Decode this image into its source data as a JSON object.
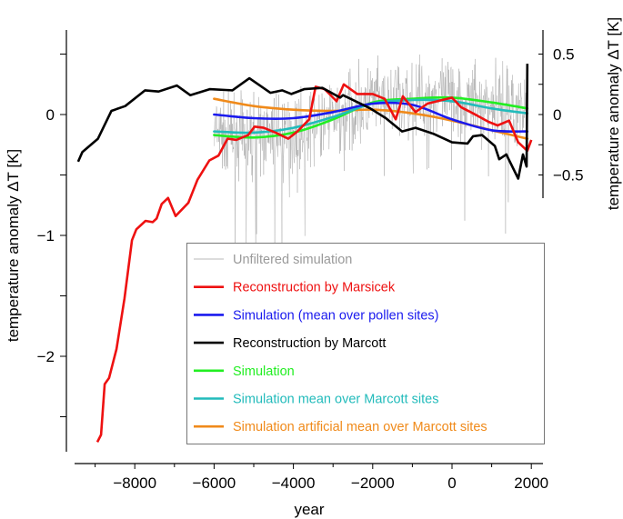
{
  "chart_data": {
    "type": "line",
    "title": "",
    "xlabel": "year",
    "ylabel_left": "temperature anomaly ΔT [K]",
    "ylabel_right": "temperature anomaly ΔT [K]",
    "xlim": [
      -9900,
      2200
    ],
    "ylim_left": [
      -2.8,
      0.7
    ],
    "ylim_right": [
      -0.7,
      0.7
    ],
    "x_ticks": [
      -8000,
      -6000,
      -4000,
      -2000,
      0,
      2000
    ],
    "x_tick_labels": [
      "−8000",
      "−6000",
      "−4000",
      "−2000",
      "0",
      "2000"
    ],
    "y_left_ticks": [
      0,
      -1,
      -2
    ],
    "y_left_tick_labels": [
      "0",
      "−1",
      "−2"
    ],
    "y_right_ticks": [
      0.5,
      0,
      -0.5
    ],
    "y_right_tick_labels": [
      "0.5",
      "0",
      "−0.5"
    ],
    "grid": false,
    "legend_position": "bottom-right",
    "series": [
      {
        "name": "Unfiltered simulation",
        "color": "#a0a0a0",
        "kind": "noise",
        "x_range": [
          -6000,
          1900
        ],
        "mean_follows": "Simulation",
        "amplitude": 0.35
      },
      {
        "name": "Reconstruction by Marsicek",
        "color": "#ee1111",
        "x": [
          -8945,
          -8850,
          -8760,
          -8650,
          -8460,
          -8260,
          -8070,
          -7960,
          -7730,
          -7550,
          -7450,
          -7320,
          -7160,
          -6970,
          -6650,
          -6420,
          -6120,
          -5890,
          -5660,
          -5440,
          -5140,
          -4980,
          -4750,
          -4450,
          -4130,
          -3900,
          -3600,
          -3440,
          -3210,
          -2910,
          -2730,
          -2390,
          -2000,
          -1700,
          -1420,
          -1240,
          -920,
          -620,
          0,
          230,
          530,
          920,
          1150,
          1440,
          1670,
          1900,
          2000
        ],
        "y": [
          -2.71,
          -2.65,
          -2.23,
          -2.18,
          -1.94,
          -1.52,
          -1.04,
          -0.95,
          -0.88,
          -0.89,
          -0.86,
          -0.74,
          -0.69,
          -0.84,
          -0.73,
          -0.54,
          -0.38,
          -0.34,
          -0.2,
          -0.21,
          -0.17,
          -0.1,
          -0.11,
          -0.15,
          -0.2,
          -0.14,
          -0.04,
          0.23,
          0.21,
          0.11,
          0.25,
          0.17,
          0.17,
          0.13,
          -0.04,
          0.15,
          0.02,
          0.09,
          0.14,
          0.06,
          0.01,
          -0.06,
          -0.09,
          -0.05,
          -0.23,
          -0.3,
          -0.21
        ]
      },
      {
        "name": "Simulation (mean over pollen sites)",
        "color": "#1a1aee",
        "x": [
          -6000,
          -5000,
          -4000,
          -3000,
          -2000,
          -1000,
          0,
          1000,
          1900
        ],
        "y": [
          0.0,
          -0.03,
          -0.03,
          0.02,
          0.09,
          0.08,
          -0.04,
          -0.13,
          -0.14
        ]
      },
      {
        "name": "Reconstruction by Marcott",
        "color": "#000000",
        "x": [
          -9430,
          -9320,
          -8930,
          -8590,
          -8240,
          -7740,
          -7400,
          -6940,
          -6600,
          -6110,
          -5540,
          -5110,
          -4580,
          -4280,
          -4050,
          -3730,
          -3270,
          -2820,
          -2750,
          -2060,
          -1670,
          -1260,
          -920,
          -460,
          0,
          390,
          530,
          760,
          1080,
          1190,
          1370,
          1670,
          1790,
          1880,
          1900
        ],
        "y": [
          -0.39,
          -0.31,
          -0.2,
          0.03,
          0.07,
          0.2,
          0.19,
          0.24,
          0.16,
          0.21,
          0.2,
          0.3,
          0.18,
          0.2,
          0.17,
          0.21,
          0.22,
          0.14,
          0.16,
          0.05,
          -0.03,
          -0.14,
          -0.11,
          -0.16,
          -0.23,
          -0.24,
          -0.18,
          -0.17,
          -0.26,
          -0.37,
          -0.33,
          -0.53,
          -0.33,
          -0.43,
          0.42
        ]
      },
      {
        "name": "Simulation",
        "color": "#22ee22",
        "x": [
          -6000,
          -5000,
          -4000,
          -3000,
          -2000,
          -1000,
          0,
          1000,
          1900
        ],
        "y": [
          -0.17,
          -0.19,
          -0.15,
          -0.04,
          0.1,
          0.13,
          0.14,
          0.1,
          0.05
        ]
      },
      {
        "name": "Simulation mean over Marcott sites",
        "color": "#22bbbb",
        "x": [
          -6000,
          -5000,
          -4000,
          -3000,
          -2000,
          -1000,
          0,
          1000,
          1900
        ],
        "y": [
          -0.14,
          -0.15,
          -0.11,
          -0.02,
          0.09,
          0.12,
          0.11,
          0.05,
          0.01
        ]
      },
      {
        "name": "Simulation artificial mean over Marcott sites",
        "color": "#f08a1a",
        "x": [
          -6000,
          -5000,
          -4000,
          -3000,
          -2000,
          -1000,
          0,
          1000,
          1900
        ],
        "y": [
          0.13,
          0.07,
          0.04,
          0.03,
          0.04,
          0.01,
          -0.05,
          -0.13,
          -0.2
        ]
      }
    ]
  }
}
